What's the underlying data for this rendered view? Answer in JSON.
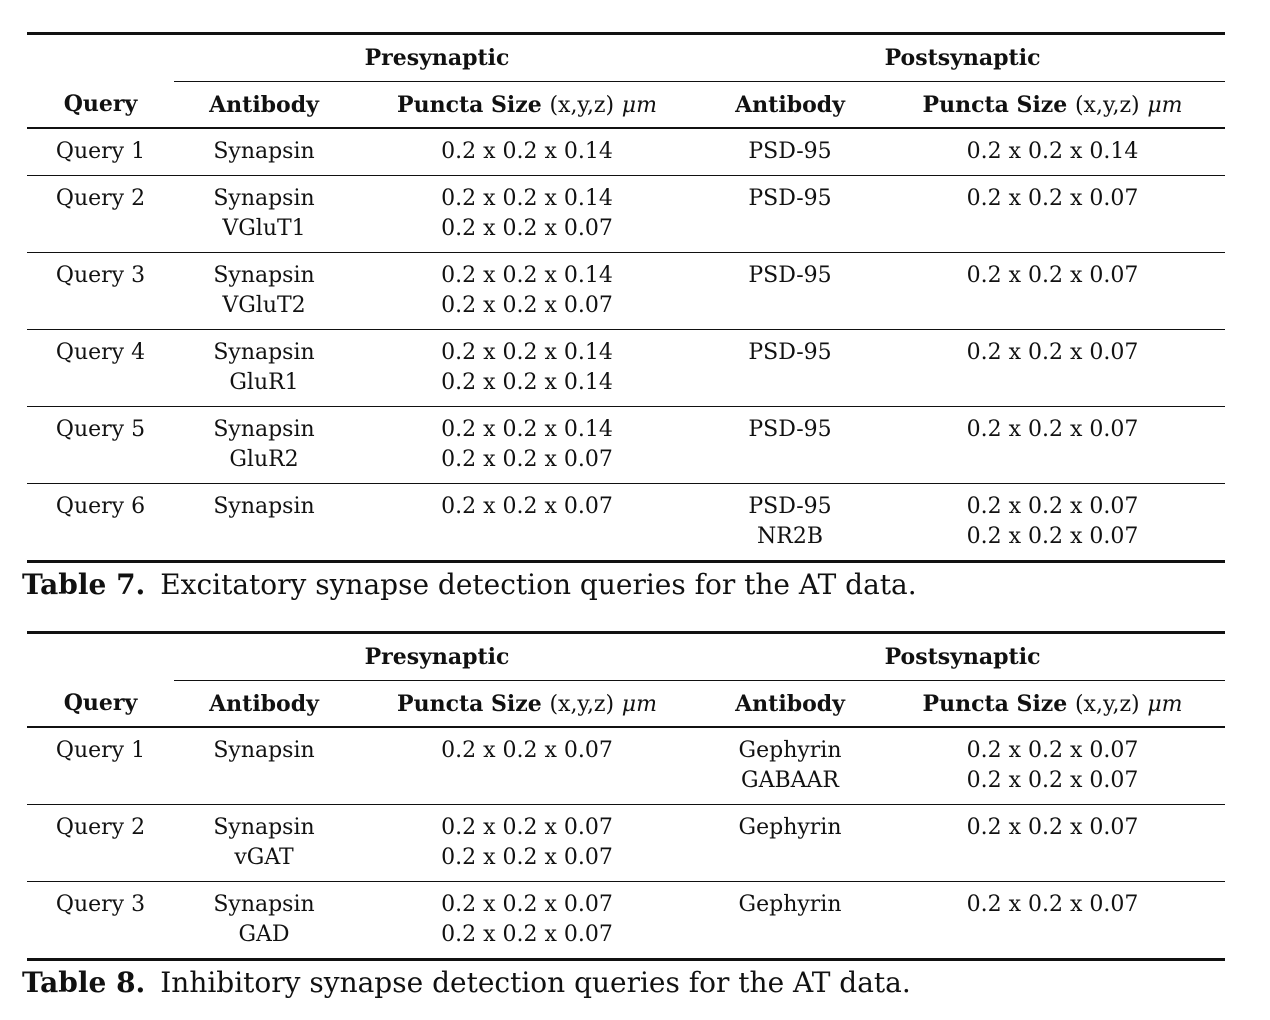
{
  "tables": [
    {
      "groups": {
        "presynaptic": "Presynaptic",
        "postsynaptic": "Postsynaptic"
      },
      "headers": {
        "query": "Query",
        "antibody": "Antibody",
        "puncta_size_bold": "Puncta Size",
        "puncta_size_unit": "(x,y,z)",
        "puncta_size_mu": "μm"
      },
      "rows": [
        {
          "query": "Query 1",
          "pre_antibody": [
            "Synapsin"
          ],
          "pre_size": [
            "0.2 x 0.2 x 0.14"
          ],
          "post_antibody": [
            "PSD-95"
          ],
          "post_size": [
            "0.2 x 0.2 x 0.14"
          ]
        },
        {
          "query": "Query 2",
          "pre_antibody": [
            "Synapsin",
            "VGluT1"
          ],
          "pre_size": [
            "0.2 x 0.2 x 0.14",
            "0.2 x 0.2 x 0.07"
          ],
          "post_antibody": [
            "PSD-95"
          ],
          "post_size": [
            "0.2 x 0.2 x 0.07"
          ]
        },
        {
          "query": "Query 3",
          "pre_antibody": [
            "Synapsin",
            "VGluT2"
          ],
          "pre_size": [
            "0.2 x 0.2 x 0.14",
            "0.2 x 0.2 x 0.07"
          ],
          "post_antibody": [
            "PSD-95"
          ],
          "post_size": [
            "0.2 x 0.2 x 0.07"
          ]
        },
        {
          "query": "Query 4",
          "pre_antibody": [
            "Synapsin",
            "GluR1"
          ],
          "pre_size": [
            "0.2 x 0.2 x 0.14",
            "0.2 x 0.2 x 0.14"
          ],
          "post_antibody": [
            "PSD-95"
          ],
          "post_size": [
            "0.2 x 0.2 x 0.07"
          ]
        },
        {
          "query": "Query 5",
          "pre_antibody": [
            "Synapsin",
            "GluR2"
          ],
          "pre_size": [
            "0.2 x 0.2 x 0.14",
            "0.2 x 0.2 x 0.07"
          ],
          "post_antibody": [
            "PSD-95"
          ],
          "post_size": [
            "0.2 x 0.2 x 0.07"
          ]
        },
        {
          "query": "Query 6",
          "pre_antibody": [
            "Synapsin"
          ],
          "pre_size": [
            "0.2 x 0.2 x 0.07"
          ],
          "post_antibody": [
            "PSD-95",
            "NR2B"
          ],
          "post_size": [
            "0.2 x 0.2 x 0.07",
            "0.2 x 0.2 x 0.07"
          ]
        }
      ],
      "caption": {
        "label": "Table 7.",
        "text": "Excitatory synapse detection queries for the AT data."
      }
    },
    {
      "groups": {
        "presynaptic": "Presynaptic",
        "postsynaptic": "Postsynaptic"
      },
      "headers": {
        "query": "Query",
        "antibody": "Antibody",
        "puncta_size_bold": "Puncta Size",
        "puncta_size_unit": "(x,y,z)",
        "puncta_size_mu": "μm"
      },
      "rows": [
        {
          "query": "Query 1",
          "pre_antibody": [
            "Synapsin"
          ],
          "pre_size": [
            "0.2 x 0.2 x 0.07"
          ],
          "post_antibody": [
            "Gephyrin",
            "GABAAR"
          ],
          "post_size": [
            "0.2 x 0.2 x 0.07",
            "0.2 x 0.2 x 0.07"
          ]
        },
        {
          "query": "Query 2",
          "pre_antibody": [
            "Synapsin",
            "vGAT"
          ],
          "pre_size": [
            "0.2 x 0.2 x 0.07",
            "0.2 x 0.2 x 0.07"
          ],
          "post_antibody": [
            "Gephyrin"
          ],
          "post_size": [
            "0.2 x 0.2 x 0.07"
          ]
        },
        {
          "query": "Query 3",
          "pre_antibody": [
            "Synapsin",
            "GAD"
          ],
          "pre_size": [
            "0.2 x 0.2 x 0.07",
            "0.2 x 0.2 x 0.07"
          ],
          "post_antibody": [
            "Gephyrin"
          ],
          "post_size": [
            "0.2 x 0.2 x 0.07"
          ]
        }
      ],
      "caption": {
        "label": "Table 8.",
        "text": "Inhibitory synapse detection queries for the AT data."
      }
    }
  ]
}
